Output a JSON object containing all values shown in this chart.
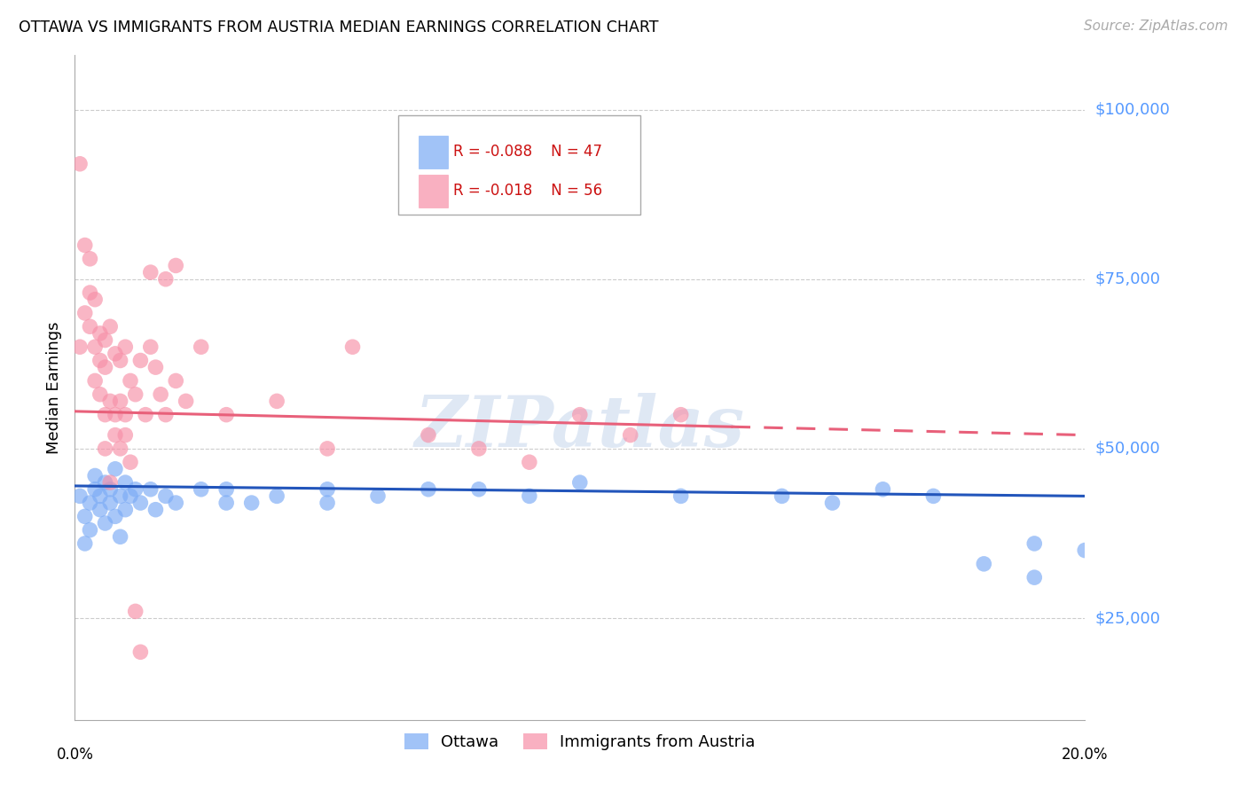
{
  "title": "OTTAWA VS IMMIGRANTS FROM AUSTRIA MEDIAN EARNINGS CORRELATION CHART",
  "source": "Source: ZipAtlas.com",
  "ylabel": "Median Earnings",
  "yticks": [
    25000,
    50000,
    75000,
    100000
  ],
  "ytick_labels": [
    "$25,000",
    "$50,000",
    "$75,000",
    "$100,000"
  ],
  "xmin": 0.0,
  "xmax": 0.2,
  "ymin": 10000,
  "ymax": 108000,
  "legend_ottawa_r": "-0.088",
  "legend_ottawa_n": "47",
  "legend_austria_r": "-0.018",
  "legend_austria_n": "56",
  "color_ottawa": "#7aaaf5",
  "color_austria": "#f78fa7",
  "color_trendline_ottawa": "#2255bb",
  "color_trendline_austria": "#e8607a",
  "watermark": "ZIPatlas",
  "ottawa_x": [
    0.001,
    0.002,
    0.002,
    0.003,
    0.003,
    0.004,
    0.004,
    0.005,
    0.005,
    0.006,
    0.006,
    0.007,
    0.007,
    0.008,
    0.008,
    0.009,
    0.009,
    0.01,
    0.01,
    0.011,
    0.012,
    0.013,
    0.015,
    0.016,
    0.018,
    0.02,
    0.025,
    0.03,
    0.035,
    0.04,
    0.05,
    0.06,
    0.07,
    0.08,
    0.09,
    0.1,
    0.12,
    0.14,
    0.15,
    0.16,
    0.17,
    0.18,
    0.19,
    0.19,
    0.2,
    0.03,
    0.05
  ],
  "ottawa_y": [
    43000,
    40000,
    36000,
    42000,
    38000,
    44000,
    46000,
    43000,
    41000,
    45000,
    39000,
    44000,
    42000,
    40000,
    47000,
    43000,
    37000,
    45000,
    41000,
    43000,
    44000,
    42000,
    44000,
    41000,
    43000,
    42000,
    44000,
    42000,
    42000,
    43000,
    44000,
    43000,
    44000,
    44000,
    43000,
    45000,
    43000,
    43000,
    42000,
    44000,
    43000,
    33000,
    36000,
    31000,
    35000,
    44000,
    42000
  ],
  "austria_x": [
    0.001,
    0.001,
    0.002,
    0.002,
    0.003,
    0.003,
    0.003,
    0.004,
    0.004,
    0.004,
    0.005,
    0.005,
    0.005,
    0.006,
    0.006,
    0.006,
    0.007,
    0.007,
    0.008,
    0.008,
    0.009,
    0.009,
    0.01,
    0.01,
    0.011,
    0.012,
    0.013,
    0.014,
    0.015,
    0.016,
    0.017,
    0.018,
    0.02,
    0.022,
    0.025,
    0.03,
    0.04,
    0.05,
    0.055,
    0.07,
    0.08,
    0.09,
    0.1,
    0.11,
    0.12,
    0.006,
    0.007,
    0.008,
    0.009,
    0.01,
    0.011,
    0.012,
    0.013,
    0.015,
    0.018,
    0.02
  ],
  "austria_y": [
    92000,
    65000,
    80000,
    70000,
    78000,
    68000,
    73000,
    72000,
    65000,
    60000,
    67000,
    63000,
    58000,
    66000,
    62000,
    55000,
    68000,
    57000,
    64000,
    55000,
    63000,
    57000,
    65000,
    55000,
    60000,
    58000,
    63000,
    55000,
    65000,
    62000,
    58000,
    55000,
    60000,
    57000,
    65000,
    55000,
    57000,
    50000,
    65000,
    52000,
    50000,
    48000,
    55000,
    52000,
    55000,
    50000,
    45000,
    52000,
    50000,
    52000,
    48000,
    26000,
    20000,
    76000,
    75000,
    77000
  ]
}
